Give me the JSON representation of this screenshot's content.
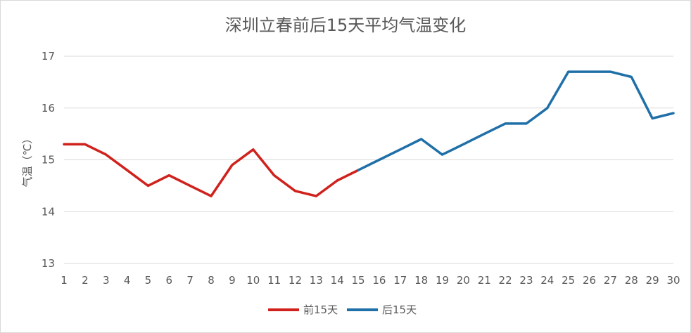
{
  "chart_data": {
    "type": "line",
    "title": "深圳立春前后15天平均气温变化",
    "xlabel": "",
    "ylabel": "气温（℃）",
    "x": [
      1,
      2,
      3,
      4,
      5,
      6,
      7,
      8,
      9,
      10,
      11,
      12,
      13,
      14,
      15,
      16,
      17,
      18,
      19,
      20,
      21,
      22,
      23,
      24,
      25,
      26,
      27,
      28,
      29,
      30
    ],
    "ylim": [
      13,
      17
    ],
    "yticks": [
      13,
      14,
      15,
      16,
      17
    ],
    "grid": true,
    "legend_position": "bottom",
    "series": [
      {
        "name": "前15天",
        "color": "#d0211c",
        "x": [
          1,
          2,
          3,
          4,
          5,
          6,
          7,
          8,
          9,
          10,
          11,
          12,
          13,
          14,
          15
        ],
        "values": [
          15.3,
          15.3,
          15.1,
          14.8,
          14.5,
          14.7,
          14.5,
          14.3,
          14.9,
          15.2,
          14.7,
          14.4,
          14.3,
          14.6,
          14.8
        ]
      },
      {
        "name": "后15天",
        "color": "#1f6fa8",
        "x": [
          15,
          16,
          17,
          18,
          19,
          20,
          21,
          22,
          23,
          24,
          25,
          26,
          27,
          28,
          29,
          30
        ],
        "values": [
          14.8,
          15.0,
          15.2,
          15.4,
          15.1,
          15.3,
          15.5,
          15.7,
          15.7,
          16.0,
          16.7,
          16.7,
          16.7,
          16.6,
          15.8,
          15.9
        ]
      }
    ]
  }
}
